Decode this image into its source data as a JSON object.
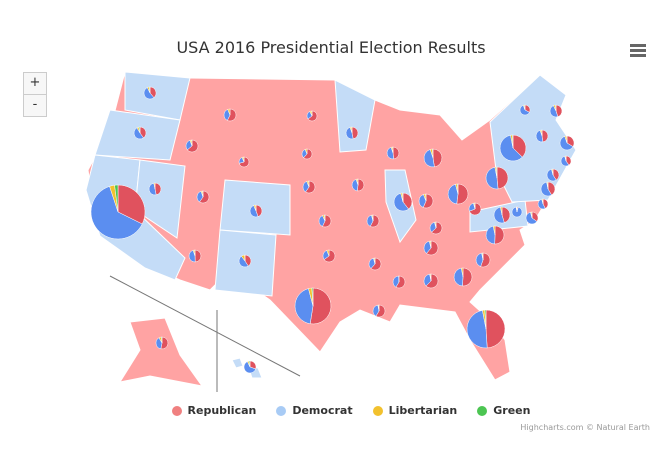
{
  "title": "USA 2016 Presidential Election Results",
  "zoom_in_label": "+",
  "zoom_out_label": "-",
  "legend": [
    {
      "label": "Republican",
      "color": "#f08080"
    },
    {
      "label": "Democrat",
      "color": "#a8cbf5"
    },
    {
      "label": "Libertarian",
      "color": "#f2c12e"
    },
    {
      "label": "Green",
      "color": "#4cc552"
    }
  ],
  "colors": {
    "rep_fill": "#ffa3a3",
    "dem_fill": "#c4dcf7",
    "rep_pie": "#e0525e",
    "dem_pie": "#5b8ef0",
    "lib_pie": "#f2c12e",
    "green_pie": "#4cc552"
  },
  "credits": "Highcharts.com © Natural Earth",
  "chart_data": {
    "type": "map-pie",
    "series_order": [
      "Republican",
      "Democrat",
      "Libertarian",
      "Green"
    ],
    "states": [
      {
        "id": "WA",
        "winner": "Democrat",
        "pct": [
          38,
          53,
          5,
          2
        ]
      },
      {
        "id": "OR",
        "winner": "Democrat",
        "pct": [
          39,
          50,
          5,
          3
        ]
      },
      {
        "id": "CA",
        "winner": "Democrat",
        "pct": [
          32,
          62,
          3,
          2
        ]
      },
      {
        "id": "NV",
        "winner": "Democrat",
        "pct": [
          45,
          48,
          3,
          0
        ]
      },
      {
        "id": "ID",
        "winner": "Republican",
        "pct": [
          59,
          28,
          4,
          1
        ]
      },
      {
        "id": "MT",
        "winner": "Republican",
        "pct": [
          56,
          36,
          6,
          0
        ]
      },
      {
        "id": "WY",
        "winner": "Republican",
        "pct": [
          68,
          22,
          5,
          1
        ]
      },
      {
        "id": "UT",
        "winner": "Republican",
        "pct": [
          46,
          27,
          3,
          1
        ]
      },
      {
        "id": "AZ",
        "winner": "Republican",
        "pct": [
          49,
          45,
          4,
          1
        ]
      },
      {
        "id": "CO",
        "winner": "Democrat",
        "pct": [
          43,
          48,
          5,
          1
        ]
      },
      {
        "id": "NM",
        "winner": "Democrat",
        "pct": [
          40,
          48,
          9,
          1
        ]
      },
      {
        "id": "ND",
        "winner": "Republican",
        "pct": [
          63,
          27,
          6,
          1
        ]
      },
      {
        "id": "SD",
        "winner": "Republican",
        "pct": [
          62,
          32,
          6,
          0
        ]
      },
      {
        "id": "NE",
        "winner": "Republican",
        "pct": [
          59,
          34,
          5,
          1
        ]
      },
      {
        "id": "KS",
        "winner": "Republican",
        "pct": [
          57,
          36,
          5,
          2
        ]
      },
      {
        "id": "OK",
        "winner": "Republican",
        "pct": [
          65,
          29,
          6,
          0
        ]
      },
      {
        "id": "TX",
        "winner": "Republican",
        "pct": [
          52,
          43,
          3,
          1
        ]
      },
      {
        "id": "MN",
        "winner": "Democrat",
        "pct": [
          45,
          46,
          4,
          1
        ]
      },
      {
        "id": "IA",
        "winner": "Republican",
        "pct": [
          51,
          42,
          4,
          1
        ]
      },
      {
        "id": "MO",
        "winner": "Republican",
        "pct": [
          57,
          38,
          3,
          1
        ]
      },
      {
        "id": "AR",
        "winner": "Republican",
        "pct": [
          61,
          34,
          3,
          1
        ]
      },
      {
        "id": "LA",
        "winner": "Republican",
        "pct": [
          58,
          38,
          2,
          1
        ]
      },
      {
        "id": "WI",
        "winner": "Republican",
        "pct": [
          47,
          46,
          4,
          1
        ]
      },
      {
        "id": "IL",
        "winner": "Democrat",
        "pct": [
          39,
          56,
          3,
          1
        ]
      },
      {
        "id": "MI",
        "winner": "Republican",
        "pct": [
          47,
          47,
          4,
          1
        ]
      },
      {
        "id": "IN",
        "winner": "Republican",
        "pct": [
          57,
          38,
          5,
          1
        ]
      },
      {
        "id": "KY",
        "winner": "Republican",
        "pct": [
          63,
          33,
          3,
          1
        ]
      },
      {
        "id": "TN",
        "winner": "Republican",
        "pct": [
          61,
          35,
          3,
          1
        ]
      },
      {
        "id": "MS",
        "winner": "Republican",
        "pct": [
          58,
          40,
          1,
          0
        ]
      },
      {
        "id": "AL",
        "winner": "Republican",
        "pct": [
          62,
          34,
          2,
          1
        ]
      },
      {
        "id": "GA",
        "winner": "Republican",
        "pct": [
          51,
          46,
          3,
          0
        ]
      },
      {
        "id": "FL",
        "winner": "Republican",
        "pct": [
          49,
          48,
          2,
          1
        ]
      },
      {
        "id": "SC",
        "winner": "Republican",
        "pct": [
          55,
          41,
          2,
          1
        ]
      },
      {
        "id": "NC",
        "winner": "Republican",
        "pct": [
          50,
          46,
          3,
          0
        ]
      },
      {
        "id": "VA",
        "winner": "Democrat",
        "pct": [
          44,
          50,
          3,
          0
        ]
      },
      {
        "id": "WV",
        "winner": "Republican",
        "pct": [
          69,
          27,
          3,
          1
        ]
      },
      {
        "id": "OH",
        "winner": "Republican",
        "pct": [
          52,
          44,
          3,
          1
        ]
      },
      {
        "id": "PA",
        "winner": "Republican",
        "pct": [
          48,
          48,
          2,
          1
        ]
      },
      {
        "id": "NY",
        "winner": "Democrat",
        "pct": [
          37,
          59,
          2,
          1
        ]
      },
      {
        "id": "ME",
        "winner": "Democrat",
        "pct": [
          45,
          48,
          5,
          2
        ]
      },
      {
        "id": "VT",
        "winner": "Democrat",
        "pct": [
          30,
          57,
          3,
          2
        ]
      },
      {
        "id": "NH",
        "winner": "Democrat",
        "pct": [
          47,
          47,
          4,
          1
        ]
      },
      {
        "id": "MA",
        "winner": "Democrat",
        "pct": [
          33,
          60,
          4,
          1
        ]
      },
      {
        "id": "RI",
        "winner": "Democrat",
        "pct": [
          39,
          54,
          3,
          1
        ]
      },
      {
        "id": "CT",
        "winner": "Democrat",
        "pct": [
          41,
          55,
          3,
          1
        ]
      },
      {
        "id": "NJ",
        "winner": "Democrat",
        "pct": [
          41,
          55,
          2,
          1
        ]
      },
      {
        "id": "DE",
        "winner": "Democrat",
        "pct": [
          42,
          53,
          3,
          1
        ]
      },
      {
        "id": "MD",
        "winner": "Democrat",
        "pct": [
          34,
          60,
          3,
          1
        ]
      },
      {
        "id": "DC",
        "winner": "Democrat",
        "pct": [
          4,
          91,
          2,
          1
        ]
      },
      {
        "id": "AK",
        "winner": "Republican",
        "pct": [
          51,
          37,
          6,
          2
        ]
      },
      {
        "id": "HI",
        "winner": "Democrat",
        "pct": [
          30,
          62,
          4,
          3
        ]
      }
    ]
  }
}
